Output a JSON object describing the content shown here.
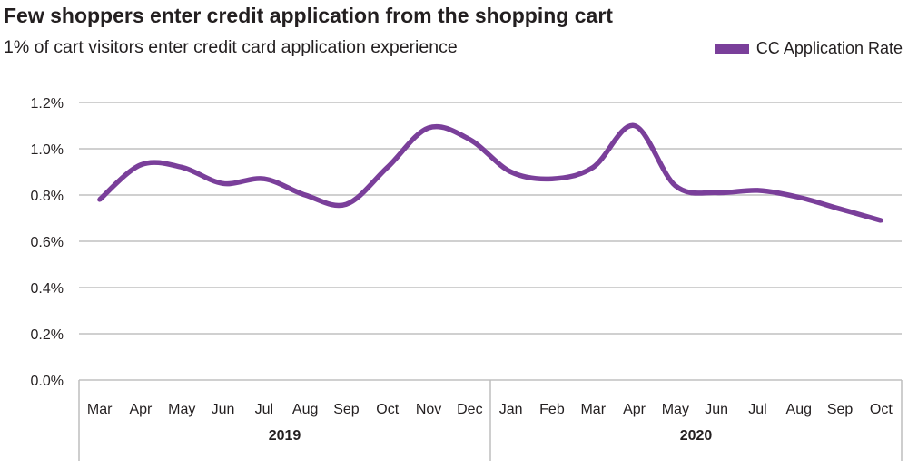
{
  "header": {
    "title": "Few shoppers enter credit application from the shopping cart",
    "subtitle": "1% of cart visitors enter credit card application experience"
  },
  "legend": {
    "label": "CC Application Rate",
    "position": "top-right"
  },
  "colors": {
    "series": "#7a3f9a",
    "grid": "#d0d0d0",
    "axis": "#bdbdbd"
  },
  "chart_data": {
    "type": "line",
    "title": "Few shoppers enter credit application from the shopping cart",
    "subtitle": "1% of cart visitors enter credit card application experience",
    "categories": [
      "Mar",
      "Apr",
      "May",
      "Jun",
      "Jul",
      "Aug",
      "Sep",
      "Oct",
      "Nov",
      "Dec",
      "Jan",
      "Feb",
      "Mar",
      "Apr",
      "May",
      "Jun",
      "Jul",
      "Aug",
      "Sep",
      "Oct"
    ],
    "groups": [
      {
        "label": "2019",
        "start": 0,
        "end": 9
      },
      {
        "label": "2020",
        "start": 10,
        "end": 19
      }
    ],
    "series": [
      {
        "name": "CC Application Rate",
        "values": [
          0.78,
          0.93,
          0.92,
          0.85,
          0.87,
          0.8,
          0.76,
          0.92,
          1.09,
          1.04,
          0.9,
          0.87,
          0.92,
          1.1,
          0.84,
          0.81,
          0.82,
          0.79,
          0.74,
          0.69
        ]
      }
    ],
    "yticks": [
      "0.0%",
      "0.2%",
      "0.4%",
      "0.6%",
      "0.8%",
      "1.0%",
      "1.2%"
    ],
    "ylim": [
      0,
      1.2
    ],
    "grid": true,
    "legend": "top-right"
  }
}
